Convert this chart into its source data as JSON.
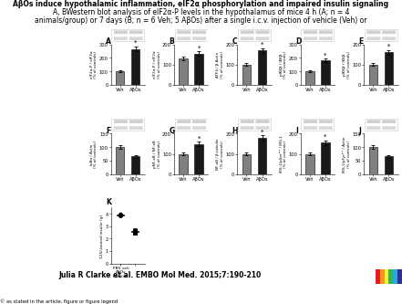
{
  "title_line1": "AβOs induce hypothalamic inflammation, eIF2α phosphorylation and impaired insulin signaling",
  "title_line2": "A, BWestern blot analysis of eIF2α-P levels in the hypothalamus of mice 4 h (A; n = 4",
  "title_line3": "animals/group) or 7 days (B; n = 6 Veh; 5 AβOs) after a single i.c.v. injection of vehicle (Veh) or",
  "citation": "Julia R Clarke et al. EMBO Mol Med. 2015;7:190-210",
  "copyright": "© as stated in the article, figure or figure legend",
  "bg_color": "#ffffff",
  "row1_bars": [
    {
      "label": "eIF2α-P / eIF2α\n(% of controls)",
      "veh": 100,
      "abos": 265,
      "ylim": [
        0,
        300
      ],
      "yticks": [
        0,
        100,
        200,
        300
      ],
      "panel": "A"
    },
    {
      "label": "eIF2α-P / eIF2α\n(% of controls)",
      "veh": 130,
      "abos": 155,
      "ylim": [
        0,
        200
      ],
      "yticks": [
        0,
        100,
        200
      ],
      "panel": "B"
    },
    {
      "label": "ATF4 / β-Actin\n(% of controls)",
      "veh": 100,
      "abos": 170,
      "ylim": [
        0,
        200
      ],
      "yticks": [
        0,
        100,
        200
      ],
      "panel": "C"
    },
    {
      "label": "pIKKβ / IKKβ\n(% of controls)",
      "veh": 100,
      "abos": 180,
      "ylim": [
        0,
        300
      ],
      "yticks": [
        0,
        100,
        200,
        300
      ],
      "panel": "D"
    },
    {
      "label": "pIKKβ / IKKβ\n(% of controls)",
      "veh": 100,
      "abos": 160,
      "ylim": [
        0,
        200
      ],
      "yticks": [
        0,
        100,
        200
      ],
      "panel": "E"
    }
  ],
  "row2_bars": [
    {
      "label": "IκBα / Actin\n(% of controls)",
      "veh": 100,
      "abos": 65,
      "ylim": [
        0,
        150
      ],
      "yticks": [
        0,
        50,
        100,
        150
      ],
      "panel": "F"
    },
    {
      "label": "pNF-κB / NF-κB\n(% of controls)",
      "veh": 100,
      "abos": 150,
      "ylim": [
        0,
        200
      ],
      "yticks": [
        0,
        100,
        200
      ],
      "panel": "G"
    },
    {
      "label": "NF-κB / β-tubulin\n(% of controls)",
      "veh": 100,
      "abos": 180,
      "ylim": [
        0,
        200
      ],
      "yticks": [
        0,
        100,
        200
      ],
      "panel": "H"
    },
    {
      "label": "IRS-1/pSer³¹¹ / IRS-1\n(% of controls)",
      "veh": 100,
      "abos": 155,
      "ylim": [
        0,
        200
      ],
      "yticks": [
        0,
        100,
        200
      ],
      "panel": "I"
    },
    {
      "label": "IRS-1/pTyrᵖʳ¹ / Actin\n(% of controls)",
      "veh": 100,
      "abos": 65,
      "ylim": [
        0,
        150
      ],
      "yticks": [
        0,
        50,
        100,
        150
      ],
      "panel": "J"
    }
  ],
  "bar_color_veh": "#808080",
  "bar_color_abos": "#1a1a1a",
  "embo_colors": [
    "#e31e24",
    "#f7941d",
    "#f9ed32",
    "#39b54a",
    "#27aae1",
    "#2e3192"
  ],
  "embo_box_color": "#1a3a6b",
  "pbs_scatter": [
    3.8,
    3.85,
    3.9,
    3.92,
    3.95,
    3.88,
    3.82
  ],
  "abos_scatter": [
    2.5,
    2.6,
    2.55,
    2.7,
    2.45,
    2.58,
    2.62,
    2.48,
    2.52
  ],
  "scatter_ylim": [
    0,
    4.5
  ],
  "scatter_yticks": [
    0,
    1,
    2,
    3,
    4
  ]
}
